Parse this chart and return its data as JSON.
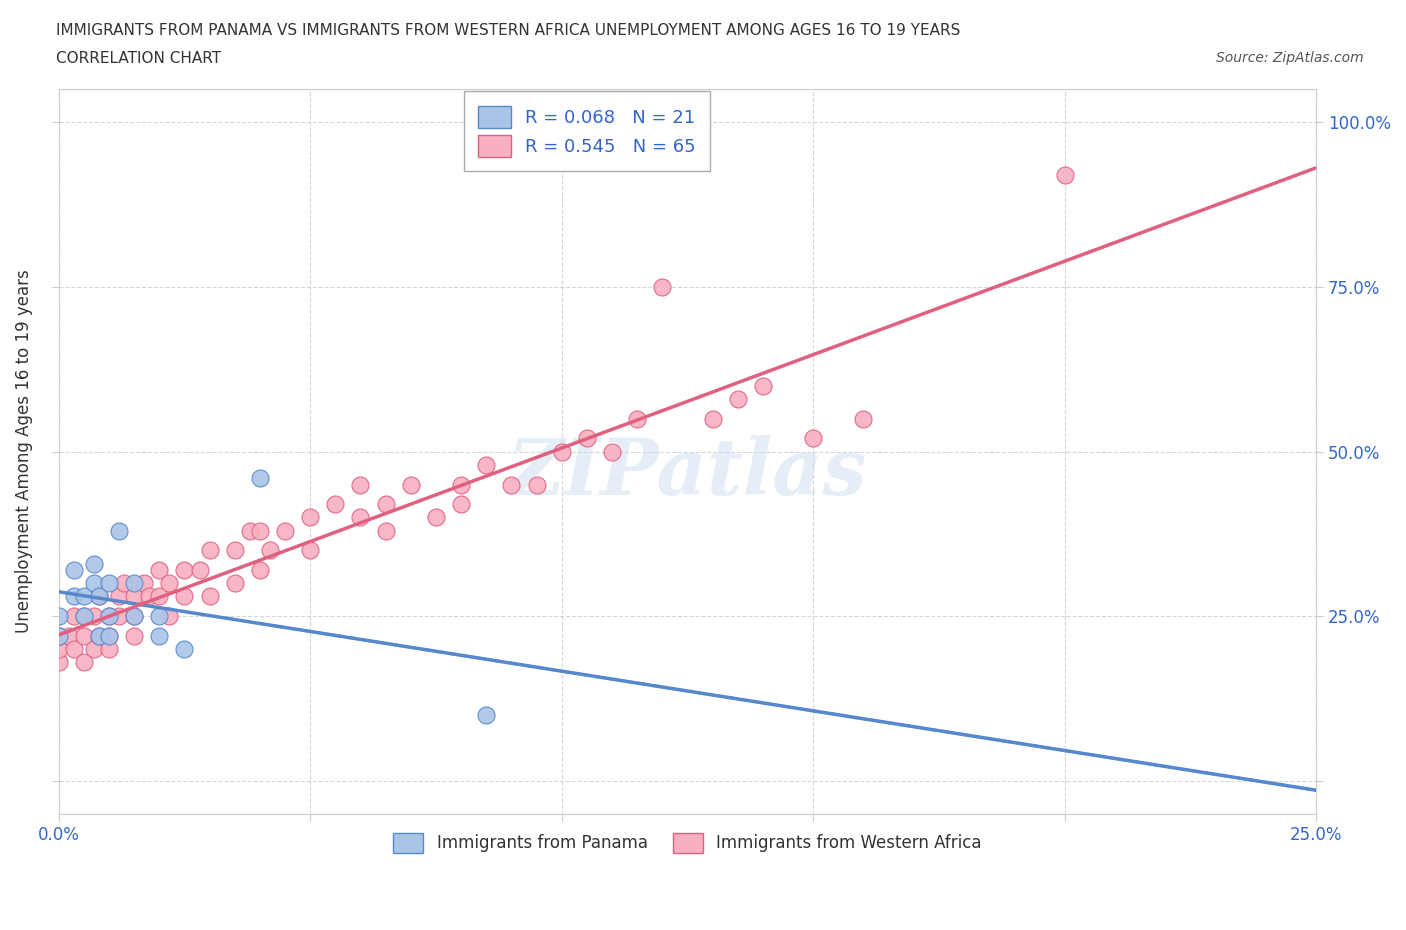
{
  "title_line1": "IMMIGRANTS FROM PANAMA VS IMMIGRANTS FROM WESTERN AFRICA UNEMPLOYMENT AMONG AGES 16 TO 19 YEARS",
  "title_line2": "CORRELATION CHART",
  "source": "Source: ZipAtlas.com",
  "ylabel": "Unemployment Among Ages 16 to 19 years",
  "xlim": [
    0,
    0.25
  ],
  "ylim": [
    -0.05,
    1.05
  ],
  "xticks": [
    0,
    0.05,
    0.1,
    0.15,
    0.2,
    0.25
  ],
  "yticks": [
    0,
    0.25,
    0.5,
    0.75,
    1.0
  ],
  "xticklabels": [
    "0.0%",
    "",
    "",
    "",
    "",
    "25.0%"
  ],
  "yticklabels": [
    "",
    "25.0%",
    "50.0%",
    "75.0%",
    "100.0%"
  ],
  "panama_color": "#aac4e8",
  "panama_edge": "#5588cc",
  "western_africa_color": "#f8b0c0",
  "western_africa_edge": "#e06080",
  "panama_R": 0.068,
  "panama_N": 21,
  "western_africa_R": 0.545,
  "western_africa_N": 65,
  "watermark": "ZIPatlas",
  "legend_label_panama": "Immigrants from Panama",
  "legend_label_africa": "Immigrants from Western Africa",
  "panama_scatter_x": [
    0.0,
    0.0,
    0.003,
    0.003,
    0.005,
    0.005,
    0.007,
    0.007,
    0.008,
    0.008,
    0.01,
    0.01,
    0.01,
    0.012,
    0.015,
    0.015,
    0.02,
    0.02,
    0.025,
    0.04,
    0.085
  ],
  "panama_scatter_y": [
    0.22,
    0.25,
    0.28,
    0.32,
    0.25,
    0.28,
    0.3,
    0.33,
    0.28,
    0.22,
    0.3,
    0.25,
    0.22,
    0.38,
    0.25,
    0.3,
    0.22,
    0.25,
    0.2,
    0.46,
    0.1
  ],
  "africa_scatter_x": [
    0.0,
    0.0,
    0.0,
    0.002,
    0.003,
    0.003,
    0.005,
    0.005,
    0.005,
    0.007,
    0.007,
    0.008,
    0.008,
    0.01,
    0.01,
    0.01,
    0.012,
    0.012,
    0.013,
    0.015,
    0.015,
    0.015,
    0.017,
    0.018,
    0.02,
    0.02,
    0.022,
    0.022,
    0.025,
    0.025,
    0.028,
    0.03,
    0.03,
    0.035,
    0.035,
    0.038,
    0.04,
    0.04,
    0.042,
    0.045,
    0.05,
    0.05,
    0.055,
    0.06,
    0.06,
    0.065,
    0.065,
    0.07,
    0.075,
    0.08,
    0.08,
    0.085,
    0.09,
    0.095,
    0.1,
    0.105,
    0.11,
    0.115,
    0.12,
    0.13,
    0.135,
    0.14,
    0.15,
    0.16,
    0.2
  ],
  "africa_scatter_y": [
    0.18,
    0.2,
    0.22,
    0.22,
    0.2,
    0.25,
    0.22,
    0.25,
    0.18,
    0.25,
    0.2,
    0.28,
    0.22,
    0.22,
    0.25,
    0.2,
    0.28,
    0.25,
    0.3,
    0.25,
    0.28,
    0.22,
    0.3,
    0.28,
    0.32,
    0.28,
    0.3,
    0.25,
    0.32,
    0.28,
    0.32,
    0.35,
    0.28,
    0.35,
    0.3,
    0.38,
    0.38,
    0.32,
    0.35,
    0.38,
    0.4,
    0.35,
    0.42,
    0.4,
    0.45,
    0.38,
    0.42,
    0.45,
    0.4,
    0.45,
    0.42,
    0.48,
    0.45,
    0.45,
    0.5,
    0.52,
    0.5,
    0.55,
    0.75,
    0.55,
    0.58,
    0.6,
    0.52,
    0.55,
    0.92
  ]
}
